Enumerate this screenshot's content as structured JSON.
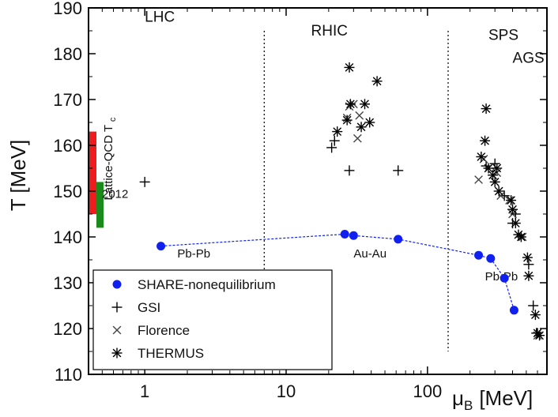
{
  "chart_data": {
    "type": "scatter",
    "title": "",
    "xlabel_main": "μ",
    "xlabel_sub": "B",
    "xlabel_unit": "[MeV]",
    "ylabel": "T [MeV]",
    "xscale": "log",
    "xlim": [
      0.4,
      700
    ],
    "ylim": [
      110,
      190
    ],
    "x_ticks": [
      1,
      10,
      100
    ],
    "x_tick_labels": [
      "1",
      "10",
      "100"
    ],
    "y_ticks": [
      110,
      120,
      130,
      140,
      150,
      160,
      170,
      180,
      190
    ],
    "y_tick_labels": [
      "110",
      "120",
      "130",
      "140",
      "150",
      "160",
      "170",
      "180",
      "190"
    ],
    "grid": false,
    "legend_position": "bottom-left",
    "region_dividers_mu": [
      7,
      140
    ],
    "regions": [
      {
        "label": "LHC",
        "mu": 1.0,
        "T": 187
      },
      {
        "label": "RHIC",
        "mu": 15,
        "T": 184
      },
      {
        "label": "SPS",
        "mu": 270,
        "T": 183
      },
      {
        "label": "AGS",
        "mu": 400,
        "T": 178
      }
    ],
    "system_labels": [
      {
        "label": "Pb-Pb",
        "mu": 1.7,
        "T": 135.5
      },
      {
        "label": "Au-Au",
        "mu": 30,
        "T": 135.5
      },
      {
        "label": "Pb-Pb",
        "mu": 255,
        "T": 130.5
      }
    ],
    "lattice": {
      "label": "Lattice-QCD T",
      "label_sub": "c",
      "label_2012": "2012",
      "bands": [
        {
          "color": "#ee1c1c",
          "T_low": 145,
          "T_high": 163
        },
        {
          "color": "#1a8a1a",
          "T_low": 142,
          "T_high": 152
        }
      ]
    },
    "series": [
      {
        "name": "SHARE-nonequilibrium",
        "marker": "filled-circle",
        "color": "#1020f0",
        "connected": true,
        "points": [
          [
            1.3,
            138
          ],
          [
            26,
            140.6
          ],
          [
            30,
            140.3
          ],
          [
            62,
            139.5
          ],
          [
            230,
            136
          ],
          [
            280,
            135.3
          ],
          [
            350,
            131
          ],
          [
            410,
            124
          ]
        ]
      },
      {
        "name": "GSI",
        "marker": "plus",
        "color": "#000000",
        "points": [
          [
            1.0,
            152
          ],
          [
            21,
            159.5
          ],
          [
            22,
            161
          ],
          [
            28,
            154.5
          ],
          [
            62,
            154.5
          ],
          [
            260,
            155.5
          ],
          [
            300,
            156
          ],
          [
            350,
            149
          ],
          [
            400,
            143
          ],
          [
            420,
            145
          ],
          [
            520,
            134
          ],
          [
            560,
            125
          ],
          [
            590,
            119
          ]
        ]
      },
      {
        "name": "Florence",
        "marker": "cross",
        "color": "#444444",
        "points": [
          [
            27,
            166
          ],
          [
            28,
            168.5
          ],
          [
            30,
            169
          ],
          [
            32,
            161.5
          ],
          [
            33,
            166.5
          ],
          [
            230,
            152.5
          ],
          [
            250,
            157
          ],
          [
            310,
            154
          ],
          [
            330,
            149
          ],
          [
            380,
            148
          ],
          [
            400,
            145
          ],
          [
            470,
            140
          ],
          [
            600,
            118.5
          ]
        ]
      },
      {
        "name": "THERMUS",
        "marker": "asterisk",
        "color": "#000000",
        "points": [
          [
            23,
            163
          ],
          [
            27,
            165.5
          ],
          [
            28,
            177
          ],
          [
            28.5,
            169
          ],
          [
            34,
            164
          ],
          [
            36,
            169
          ],
          [
            39,
            165
          ],
          [
            44,
            174
          ],
          [
            260,
            168
          ],
          [
            240,
            157.5
          ],
          [
            255,
            161
          ],
          [
            270,
            155
          ],
          [
            290,
            153.5
          ],
          [
            300,
            152
          ],
          [
            310,
            155
          ],
          [
            320,
            150
          ],
          [
            390,
            148
          ],
          [
            400,
            146
          ],
          [
            420,
            143
          ],
          [
            440,
            140.5
          ],
          [
            460,
            140
          ],
          [
            510,
            135.5
          ],
          [
            520,
            131.5
          ],
          [
            580,
            123
          ],
          [
            600,
            119
          ],
          [
            620,
            118.5
          ]
        ]
      }
    ]
  }
}
